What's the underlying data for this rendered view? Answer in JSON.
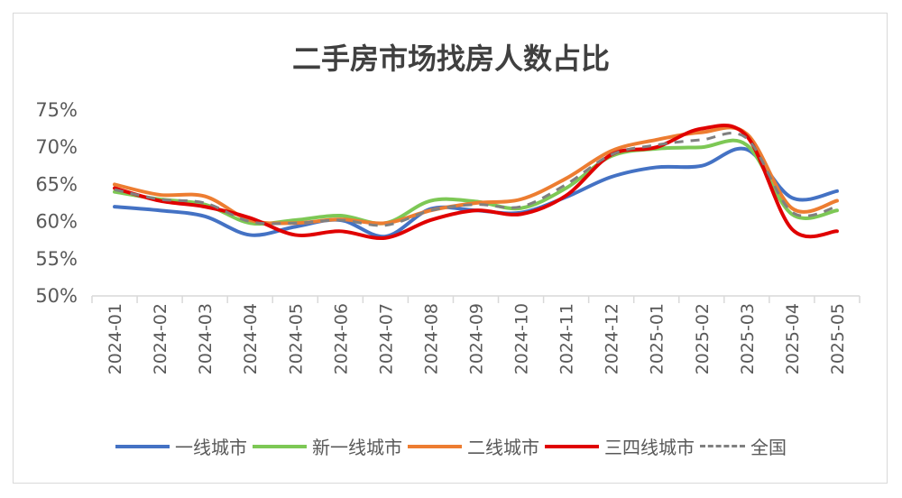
{
  "chart_data": {
    "type": "line",
    "title": "二手房市场找房人数占比",
    "categories": [
      "2024-01",
      "2024-02",
      "2024-03",
      "2024-04",
      "2024-05",
      "2024-06",
      "2024-07",
      "2024-08",
      "2024-09",
      "2024-10",
      "2024-11",
      "2024-12",
      "2025-01",
      "2025-02",
      "2025-03",
      "2025-04",
      "2025-05"
    ],
    "yticks": [
      "50%",
      "55%",
      "60%",
      "65%",
      "70%",
      "75%"
    ],
    "ylim": [
      50,
      75
    ],
    "grid": false,
    "legend": "bottom",
    "series": [
      {
        "name": "一线城市",
        "color": "#4472C4",
        "dash": false,
        "values": [
          62.0,
          61.5,
          60.7,
          58.2,
          59.3,
          60.2,
          58.0,
          61.7,
          61.5,
          61.2,
          63.3,
          66.0,
          67.3,
          67.5,
          69.7,
          63.2,
          64.1
        ]
      },
      {
        "name": "新一线城市",
        "color": "#7DC855",
        "dash": false,
        "values": [
          64.0,
          63.0,
          62.3,
          59.8,
          60.2,
          60.8,
          59.8,
          62.8,
          62.7,
          61.8,
          64.5,
          68.8,
          69.8,
          70.0,
          70.3,
          61.0,
          61.5
        ]
      },
      {
        "name": "二线城市",
        "color": "#ED7D31",
        "dash": false,
        "values": [
          65.0,
          63.6,
          63.4,
          60.2,
          59.8,
          60.3,
          59.8,
          61.5,
          62.5,
          63.0,
          65.8,
          69.5,
          71.0,
          72.0,
          71.8,
          61.8,
          62.8
        ]
      },
      {
        "name": "三四线城市",
        "color": "#E00000",
        "dash": false,
        "values": [
          64.5,
          62.8,
          62.0,
          60.5,
          58.2,
          58.7,
          57.8,
          60.2,
          61.5,
          61.0,
          63.5,
          69.0,
          70.0,
          72.5,
          71.5,
          59.0,
          58.7
        ]
      },
      {
        "name": "全国",
        "color": "#808080",
        "dash": true,
        "values": [
          64.3,
          63.0,
          62.5,
          60.0,
          59.8,
          60.2,
          59.5,
          61.5,
          62.3,
          62.0,
          65.0,
          69.0,
          70.3,
          71.0,
          71.2,
          61.3,
          62.0
        ]
      }
    ]
  }
}
